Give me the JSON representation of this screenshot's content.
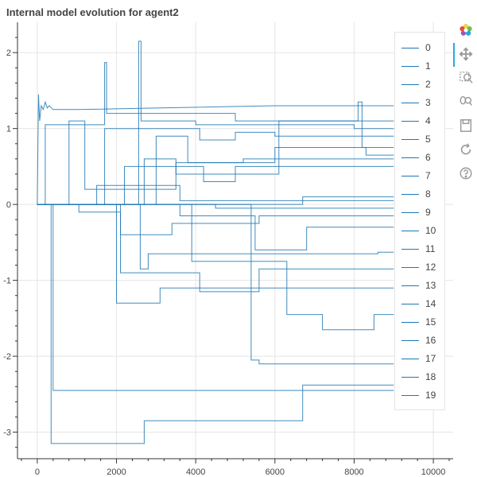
{
  "chart_data": {
    "type": "line",
    "title": "Internal model evolution for agent2",
    "xlabel": "",
    "ylabel": "",
    "xlim": [
      -500,
      10500
    ],
    "ylim": [
      -3.35,
      2.4
    ],
    "x_ticks": [
      0,
      2000,
      4000,
      6000,
      8000,
      10000
    ],
    "x_tick_labels": [
      "0",
      "2000",
      "4000",
      "6000",
      "8000",
      "10000"
    ],
    "y_ticks": [
      -3,
      -2,
      -1,
      0,
      1,
      2
    ],
    "y_tick_labels": [
      "-3",
      "-2",
      "-1",
      "0",
      "1",
      "2"
    ],
    "grid": true,
    "legend_position": "right",
    "line_color": "#1f77b4",
    "series": [
      {
        "name": "0",
        "x": [
          0,
          30,
          60,
          100,
          150,
          200,
          250,
          300,
          400,
          1000,
          3000,
          6000,
          9000
        ],
        "y": [
          0,
          1.45,
          1.1,
          1.3,
          1.25,
          1.35,
          1.27,
          1.3,
          1.25,
          1.25,
          1.27,
          1.3,
          1.3
        ]
      },
      {
        "name": "1",
        "x": [
          0,
          200,
          200,
          1700,
          1700,
          1750,
          1750,
          5000,
          5000,
          9000
        ],
        "y": [
          0,
          0,
          1.05,
          1.05,
          1.87,
          1.87,
          1.2,
          1.2,
          1.1,
          1.1
        ]
      },
      {
        "name": "2",
        "x": [
          0,
          2560,
          2560,
          2620,
          2620,
          4000,
          4000,
          8000,
          8000,
          9000
        ],
        "y": [
          0,
          0,
          2.15,
          2.15,
          1.1,
          1.1,
          1.05,
          1.05,
          1.0,
          1.0
        ]
      },
      {
        "name": "3",
        "x": [
          0,
          1700,
          1700,
          4100,
          4100,
          5000,
          5000,
          6000,
          6000,
          9000
        ],
        "y": [
          0,
          0,
          1.0,
          1.0,
          0.85,
          0.85,
          0.95,
          0.95,
          0.9,
          0.9
        ]
      },
      {
        "name": "4",
        "x": [
          0,
          800,
          800,
          1200,
          1200,
          3500,
          3500,
          6000,
          6000,
          9000
        ],
        "y": [
          0,
          0,
          1.1,
          1.1,
          0.2,
          0.2,
          0.55,
          0.55,
          0.75,
          0.75
        ]
      },
      {
        "name": "5",
        "x": [
          0,
          2700,
          2700,
          3500,
          3500,
          6100,
          6100,
          8100,
          8100,
          8200,
          8200,
          8300,
          8300,
          9000
        ],
        "y": [
          0,
          0,
          0.6,
          0.6,
          0.4,
          0.4,
          1.1,
          1.1,
          1.35,
          1.35,
          0.75,
          0.75,
          0.65,
          0.65
        ]
      },
      {
        "name": "6",
        "x": [
          0,
          3000,
          3000,
          3800,
          3800,
          5200,
          5200,
          9000
        ],
        "y": [
          0,
          0,
          0.9,
          0.9,
          0.55,
          0.55,
          0.6,
          0.6
        ]
      },
      {
        "name": "7",
        "x": [
          0,
          2200,
          2200,
          4200,
          4200,
          5000,
          5000,
          9000
        ],
        "y": [
          0,
          0,
          0.5,
          0.5,
          0.3,
          0.3,
          0.5,
          0.5
        ]
      },
      {
        "name": "8",
        "x": [
          0,
          1500,
          1500,
          3600,
          3600,
          9000
        ],
        "y": [
          0,
          0,
          0.25,
          0.25,
          0.05,
          0.05
        ]
      },
      {
        "name": "9",
        "x": [
          0,
          6700,
          6700,
          9000
        ],
        "y": [
          0,
          0,
          0.1,
          0.1
        ]
      },
      {
        "name": "10",
        "x": [
          0,
          4500,
          4500,
          9000
        ],
        "y": [
          0,
          0,
          -0.05,
          -0.05
        ]
      },
      {
        "name": "11",
        "x": [
          0,
          3600,
          3600,
          5500,
          5500,
          6800,
          6800,
          9000
        ],
        "y": [
          0,
          0,
          -0.15,
          -0.15,
          -0.6,
          -0.6,
          -0.3,
          -0.3
        ]
      },
      {
        "name": "12",
        "x": [
          0,
          2100,
          2100,
          3400,
          3400,
          5600,
          5600,
          9000
        ],
        "y": [
          0,
          0,
          -0.4,
          -0.4,
          -0.25,
          -0.25,
          -0.15,
          -0.15
        ]
      },
      {
        "name": "13",
        "x": [
          0,
          2600,
          2600,
          2800,
          2800,
          8600,
          8600,
          9000
        ],
        "y": [
          0,
          0,
          -0.85,
          -0.85,
          -0.65,
          -0.65,
          -0.63,
          -0.63
        ]
      },
      {
        "name": "14",
        "x": [
          0,
          1050,
          1050,
          2100,
          2100,
          4100,
          4100,
          5600,
          5600,
          9000
        ],
        "y": [
          0,
          0,
          -0.1,
          -0.1,
          -0.9,
          -0.9,
          -1.15,
          -1.15,
          -0.85,
          -0.85
        ]
      },
      {
        "name": "15",
        "x": [
          0,
          2000,
          2000,
          3100,
          3100,
          6300,
          6300,
          8500,
          8500,
          9000
        ],
        "y": [
          0,
          0,
          -1.3,
          -1.3,
          -1.1,
          -1.1,
          -1.1,
          -1.1,
          -1.1,
          -1.1
        ]
      },
      {
        "name": "16",
        "x": [
          0,
          3900,
          3900,
          6300,
          6300,
          7200,
          7200,
          8500,
          8500,
          9000
        ],
        "y": [
          0,
          0,
          -0.75,
          -0.75,
          -1.45,
          -1.45,
          -1.65,
          -1.65,
          -1.45,
          -1.45
        ]
      },
      {
        "name": "17",
        "x": [
          0,
          5400,
          5400,
          5600,
          5600,
          9000
        ],
        "y": [
          0,
          0,
          -2.05,
          -2.05,
          -2.1,
          -2.1
        ]
      },
      {
        "name": "18",
        "x": [
          0,
          400,
          400,
          2950,
          2950,
          9000
        ],
        "y": [
          0,
          0,
          -2.45,
          -2.45,
          -2.45,
          -2.45
        ]
      },
      {
        "name": "19",
        "x": [
          0,
          350,
          350,
          2700,
          2700,
          6700,
          6700,
          9000
        ],
        "y": [
          0,
          0,
          -3.15,
          -3.15,
          -2.85,
          -2.85,
          -2.38,
          -2.38
        ]
      }
    ]
  },
  "toolbar": {
    "tools": [
      {
        "icon": "bokeh-logo-icon"
      },
      {
        "icon": "pan-icon"
      },
      {
        "icon": "box-zoom-icon"
      },
      {
        "icon": "wheel-zoom-icon"
      },
      {
        "icon": "save-icon"
      },
      {
        "icon": "reset-icon"
      },
      {
        "icon": "help-icon"
      }
    ]
  }
}
